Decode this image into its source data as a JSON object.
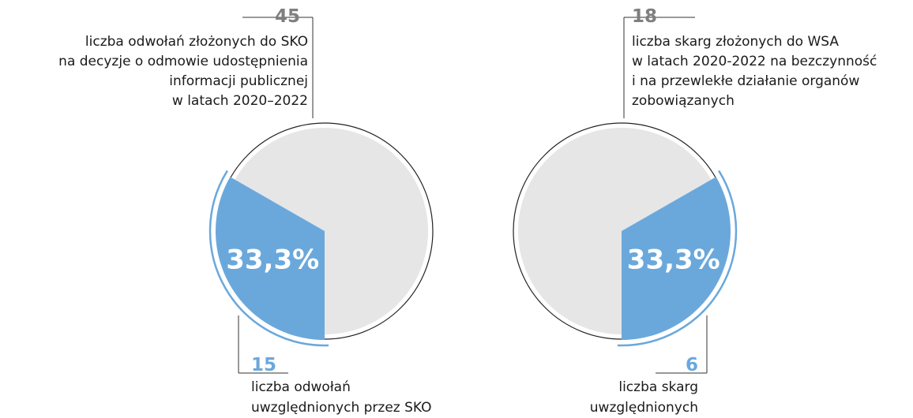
{
  "chart_data": [
    {
      "type": "pie",
      "total": 45,
      "total_label": [
        "liczba odwołań złożonych do SKO",
        "na decyzje o odmowie udostępnienia",
        "informacji publicznej",
        "w latach 2020–2022"
      ],
      "part": 15,
      "part_label": [
        "liczba odwołań",
        "uwzględnionych przez SKO"
      ],
      "percent": 33.3,
      "percent_label": "33,3%",
      "colors": {
        "part": "#6aa8dc",
        "rest": "#e6e6e6",
        "total_number": "#7f7f7f"
      }
    },
    {
      "type": "pie",
      "total": 18,
      "total_label": [
        "liczba skarg złożonych do WSA",
        "w latach 2020-2022 na bezczynność",
        "i na przewlekłe działanie organów",
        "zobowiązanych"
      ],
      "part": 6,
      "part_label": [
        "liczba skarg",
        "uwzględnionych"
      ],
      "percent": 33.3,
      "percent_label": "33,3%",
      "colors": {
        "part": "#6aa8dc",
        "rest": "#e6e6e6",
        "total_number": "#7f7f7f"
      }
    }
  ]
}
